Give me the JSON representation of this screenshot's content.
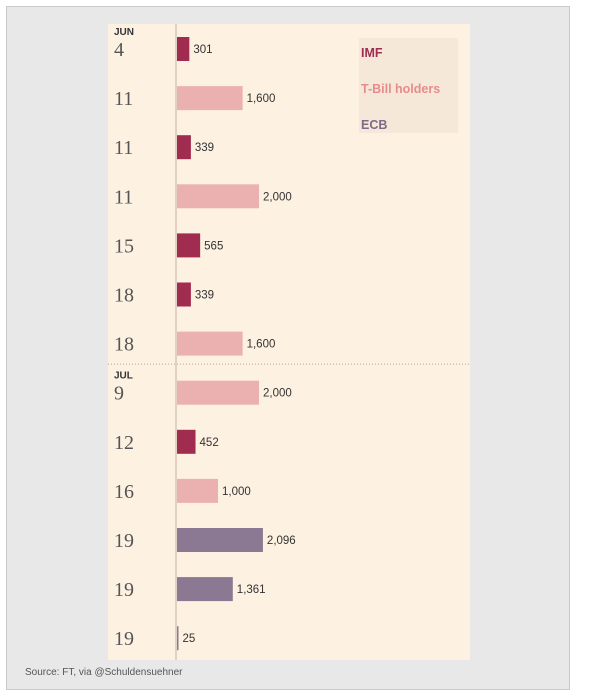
{
  "chart_data": {
    "type": "bar",
    "orientation": "horizontal",
    "title": "",
    "xlabel": "",
    "ylabel": "",
    "legend_placement": "top-right",
    "series_defs": [
      {
        "name": "IMF",
        "color": "#a02c50"
      },
      {
        "name": "T-Bill holders",
        "color": "#ebb1b1"
      },
      {
        "name": "ECB",
        "color": "#8b7892"
      }
    ],
    "rows": [
      {
        "month": "JUN",
        "day": "4",
        "series": "IMF",
        "value": 301,
        "label": "301"
      },
      {
        "month": "",
        "day": "11",
        "series": "T-Bill holders",
        "value": 1600,
        "label": "1,600"
      },
      {
        "month": "",
        "day": "11",
        "series": "IMF",
        "value": 339,
        "label": "339"
      },
      {
        "month": "",
        "day": "11",
        "series": "T-Bill holders",
        "value": 2000,
        "label": "2,000"
      },
      {
        "month": "",
        "day": "15",
        "series": "IMF",
        "value": 565,
        "label": "565"
      },
      {
        "month": "",
        "day": "18",
        "series": "IMF",
        "value": 339,
        "label": "339"
      },
      {
        "month": "",
        "day": "18",
        "series": "T-Bill holders",
        "value": 1600,
        "label": "1,600"
      },
      {
        "month": "JUL",
        "day": "9",
        "series": "T-Bill holders",
        "value": 2000,
        "label": "2,000"
      },
      {
        "month": "",
        "day": "12",
        "series": "IMF",
        "value": 452,
        "label": "452"
      },
      {
        "month": "",
        "day": "16",
        "series": "T-Bill holders",
        "value": 1000,
        "label": "1,000"
      },
      {
        "month": "",
        "day": "19",
        "series": "ECB",
        "value": 2096,
        "label": "2,096"
      },
      {
        "month": "",
        "day": "19",
        "series": "ECB",
        "value": 1361,
        "label": "1,361"
      },
      {
        "month": "",
        "day": "19",
        "series": "ECB",
        "value": 25,
        "label": "25"
      }
    ]
  },
  "legend": {
    "imf": "IMF",
    "tbill": "T-Bill holders",
    "ecb": "ECB"
  },
  "colors": {
    "imf": "#a02c50",
    "tbill": "#e88b8b",
    "ecb": "#7d6b87"
  },
  "source": "Source: FT, via @Schuldensuehner"
}
